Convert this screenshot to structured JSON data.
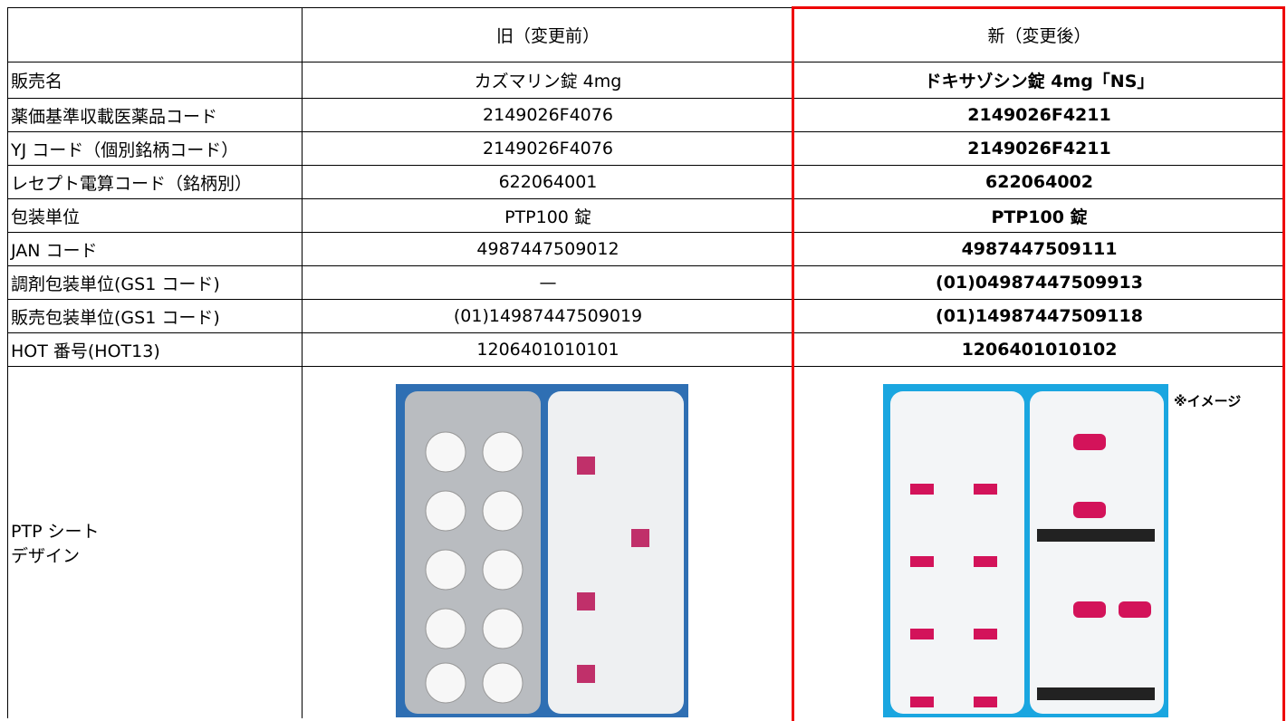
{
  "table": {
    "header": [
      "旧（変更前）",
      "新（変更後）"
    ],
    "rows": [
      [
        "販売名",
        "カズマリン錠 4mg",
        "ドキサゾシン錠 4mg「NS」"
      ],
      [
        "薬価基準収載医薬品コード",
        "2149026F4076",
        "2149026F4211"
      ],
      [
        "YJ コード（個別銘柄コード）",
        "2149026F4076",
        "2149026F4211"
      ],
      [
        "レセプト電算コード（銘柄別）",
        "622064001",
        "622064002"
      ],
      [
        "包装単位",
        "PTP100 錠",
        "PTP100 錠"
      ],
      [
        "JAN コード",
        "4987447509012",
        "4987447509111"
      ],
      [
        "調剤包装単位(GS1 コード)",
        "—",
        "(01)04987447509913"
      ],
      [
        "販売包装単位(GS1 コード)",
        "(01)14987447509019",
        "(01)14987447509118"
      ],
      [
        "HOT 番号(HOT13)",
        "1206401010101",
        "1206401010102"
      ]
    ],
    "design_label": [
      "PTP シート",
      "デザイン"
    ],
    "image_note": "※イメージ"
  }
}
